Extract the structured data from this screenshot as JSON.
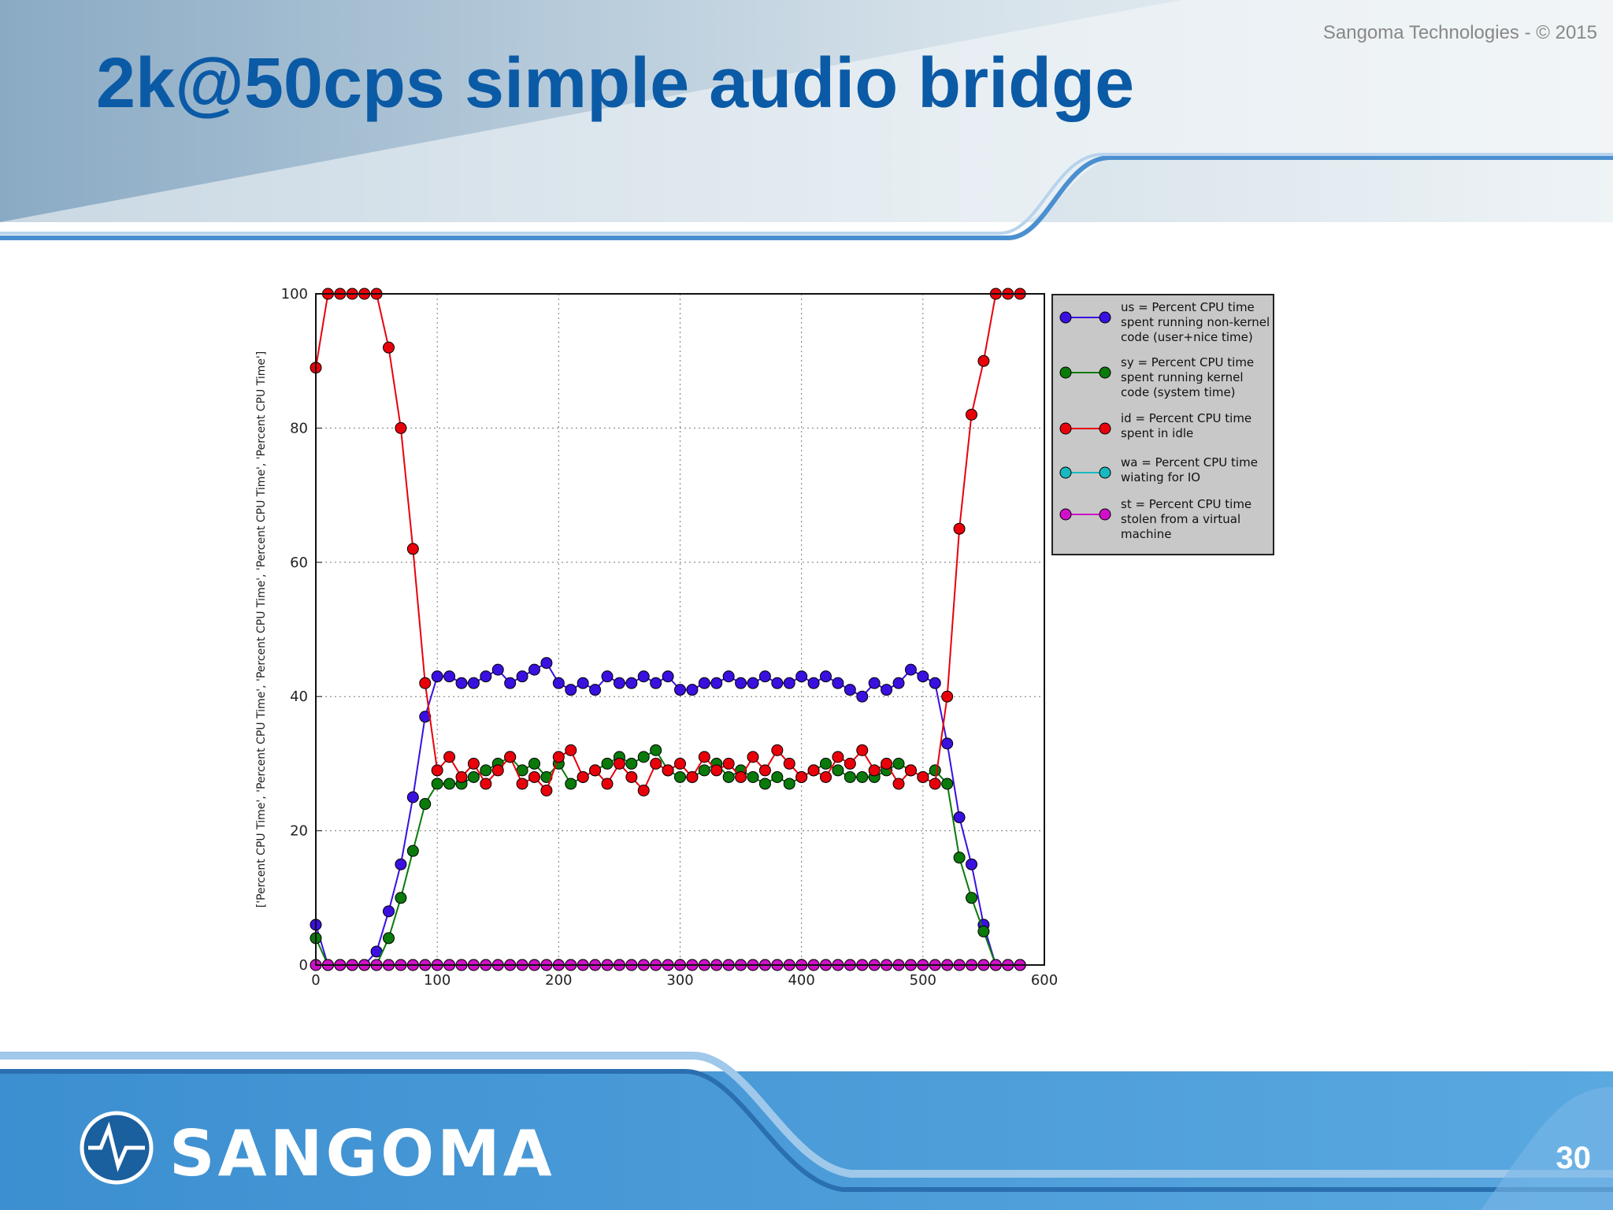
{
  "header": {
    "copyright": "Sangoma Technologies - © 2015",
    "title": "2k@50cps simple audio bridge"
  },
  "footer": {
    "logo": "SANGOMA",
    "page_number": "30"
  },
  "chart_data": {
    "type": "line",
    "y_label": "['Percent CPU Time', 'Percent CPU Time', 'Percent CPU Time', 'Percent CPU Time', 'Percent CPU Time']",
    "x": [
      0,
      10,
      20,
      30,
      40,
      50,
      60,
      70,
      80,
      90,
      100,
      110,
      120,
      130,
      140,
      150,
      160,
      170,
      180,
      190,
      200,
      210,
      220,
      230,
      240,
      250,
      260,
      270,
      280,
      290,
      300,
      310,
      320,
      330,
      340,
      350,
      360,
      370,
      380,
      390,
      400,
      410,
      420,
      430,
      440,
      450,
      460,
      470,
      480,
      490,
      500,
      510,
      520,
      530,
      540,
      550,
      560,
      570,
      580
    ],
    "series": [
      {
        "name": "us = Percent CPU time spent running non-kernel code (user+nice time)",
        "color": "#3a10e0",
        "values": [
          6,
          0,
          0,
          0,
          0,
          2,
          8,
          15,
          25,
          37,
          43,
          43,
          42,
          42,
          43,
          44,
          42,
          43,
          44,
          45,
          42,
          41,
          42,
          41,
          43,
          42,
          42,
          43,
          42,
          43,
          41,
          41,
          42,
          42,
          43,
          42,
          42,
          43,
          42,
          42,
          43,
          42,
          43,
          42,
          41,
          40,
          42,
          41,
          42,
          44,
          43,
          42,
          33,
          22,
          15,
          6,
          0,
          0,
          0
        ]
      },
      {
        "name": "sy = Percent CPU time spent running kernel code (system time)",
        "color": "#0a7a0a",
        "values": [
          4,
          0,
          0,
          0,
          0,
          0,
          4,
          10,
          17,
          24,
          27,
          27,
          27,
          28,
          29,
          30,
          31,
          29,
          30,
          28,
          30,
          27,
          28,
          29,
          30,
          31,
          30,
          31,
          32,
          29,
          28,
          28,
          29,
          30,
          28,
          29,
          28,
          27,
          28,
          27,
          28,
          29,
          30,
          29,
          28,
          28,
          28,
          29,
          30,
          29,
          28,
          29,
          27,
          16,
          10,
          5,
          0,
          0,
          0
        ]
      },
      {
        "name": "id = Percent CPU time spent in idle",
        "color": "#e8000b",
        "values": [
          89,
          100,
          100,
          100,
          100,
          100,
          92,
          80,
          62,
          42,
          29,
          31,
          28,
          30,
          27,
          29,
          31,
          27,
          28,
          26,
          31,
          32,
          28,
          29,
          27,
          30,
          28,
          26,
          30,
          29,
          30,
          28,
          31,
          29,
          30,
          28,
          31,
          29,
          32,
          30,
          28,
          29,
          28,
          31,
          30,
          32,
          29,
          30,
          27,
          29,
          28,
          27,
          40,
          65,
          82,
          90,
          100,
          100,
          100
        ]
      },
      {
        "name": "wa = Percent CPU time wiating for IO",
        "color": "#18b8c0",
        "values": [
          0,
          0,
          0,
          0,
          0,
          0,
          0,
          0,
          0,
          0,
          0,
          0,
          0,
          0,
          0,
          0,
          0,
          0,
          0,
          0,
          0,
          0,
          0,
          0,
          0,
          0,
          0,
          0,
          0,
          0,
          0,
          0,
          0,
          0,
          0,
          0,
          0,
          0,
          0,
          0,
          0,
          0,
          0,
          0,
          0,
          0,
          0,
          0,
          0,
          0,
          0,
          0,
          0,
          0,
          0,
          0,
          0,
          0,
          0
        ]
      },
      {
        "name": "st = Percent CPU time stolen from a virtual machine",
        "color": "#d010c8",
        "values": [
          0,
          0,
          0,
          0,
          0,
          0,
          0,
          0,
          0,
          0,
          0,
          0,
          0,
          0,
          0,
          0,
          0,
          0,
          0,
          0,
          0,
          0,
          0,
          0,
          0,
          0,
          0,
          0,
          0,
          0,
          0,
          0,
          0,
          0,
          0,
          0,
          0,
          0,
          0,
          0,
          0,
          0,
          0,
          0,
          0,
          0,
          0,
          0,
          0,
          0,
          0,
          0,
          0,
          0,
          0,
          0,
          0,
          0,
          0
        ]
      }
    ],
    "xlim": [
      0,
      600
    ],
    "xticks": [
      0,
      100,
      200,
      300,
      400,
      500,
      600
    ],
    "ylim": [
      0,
      100
    ],
    "yticks": [
      0,
      20,
      40,
      60,
      80,
      100
    ],
    "grid": true,
    "legend": "outside-right"
  }
}
